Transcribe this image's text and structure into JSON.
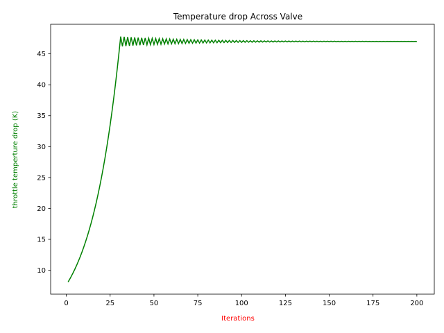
{
  "chart_data": {
    "type": "line",
    "title": "Temperature drop Across Valve",
    "xlabel": "Iterations",
    "ylabel": "throttle temperture drop (K)",
    "xlabel_color": "#ff0000",
    "ylabel_color": "#008000",
    "line_color": "#008000",
    "xlim": [
      -8.95,
      209.95
    ],
    "ylim": [
      6.14,
      49.78
    ],
    "xticks": [
      0,
      25,
      50,
      75,
      100,
      125,
      150,
      175,
      200
    ],
    "yticks": [
      10,
      15,
      20,
      25,
      30,
      35,
      40,
      45
    ],
    "grid": false,
    "legend": false,
    "series": [
      {
        "x_start": 1,
        "x_end": 200,
        "growth": {
          "x_end": 31,
          "y_start": 8.1,
          "y_end": 47.8
        },
        "oscillation": {
          "center": 47.0,
          "initial_amplitude": 0.8,
          "decay_per_iteration": 0.975
        }
      }
    ]
  }
}
